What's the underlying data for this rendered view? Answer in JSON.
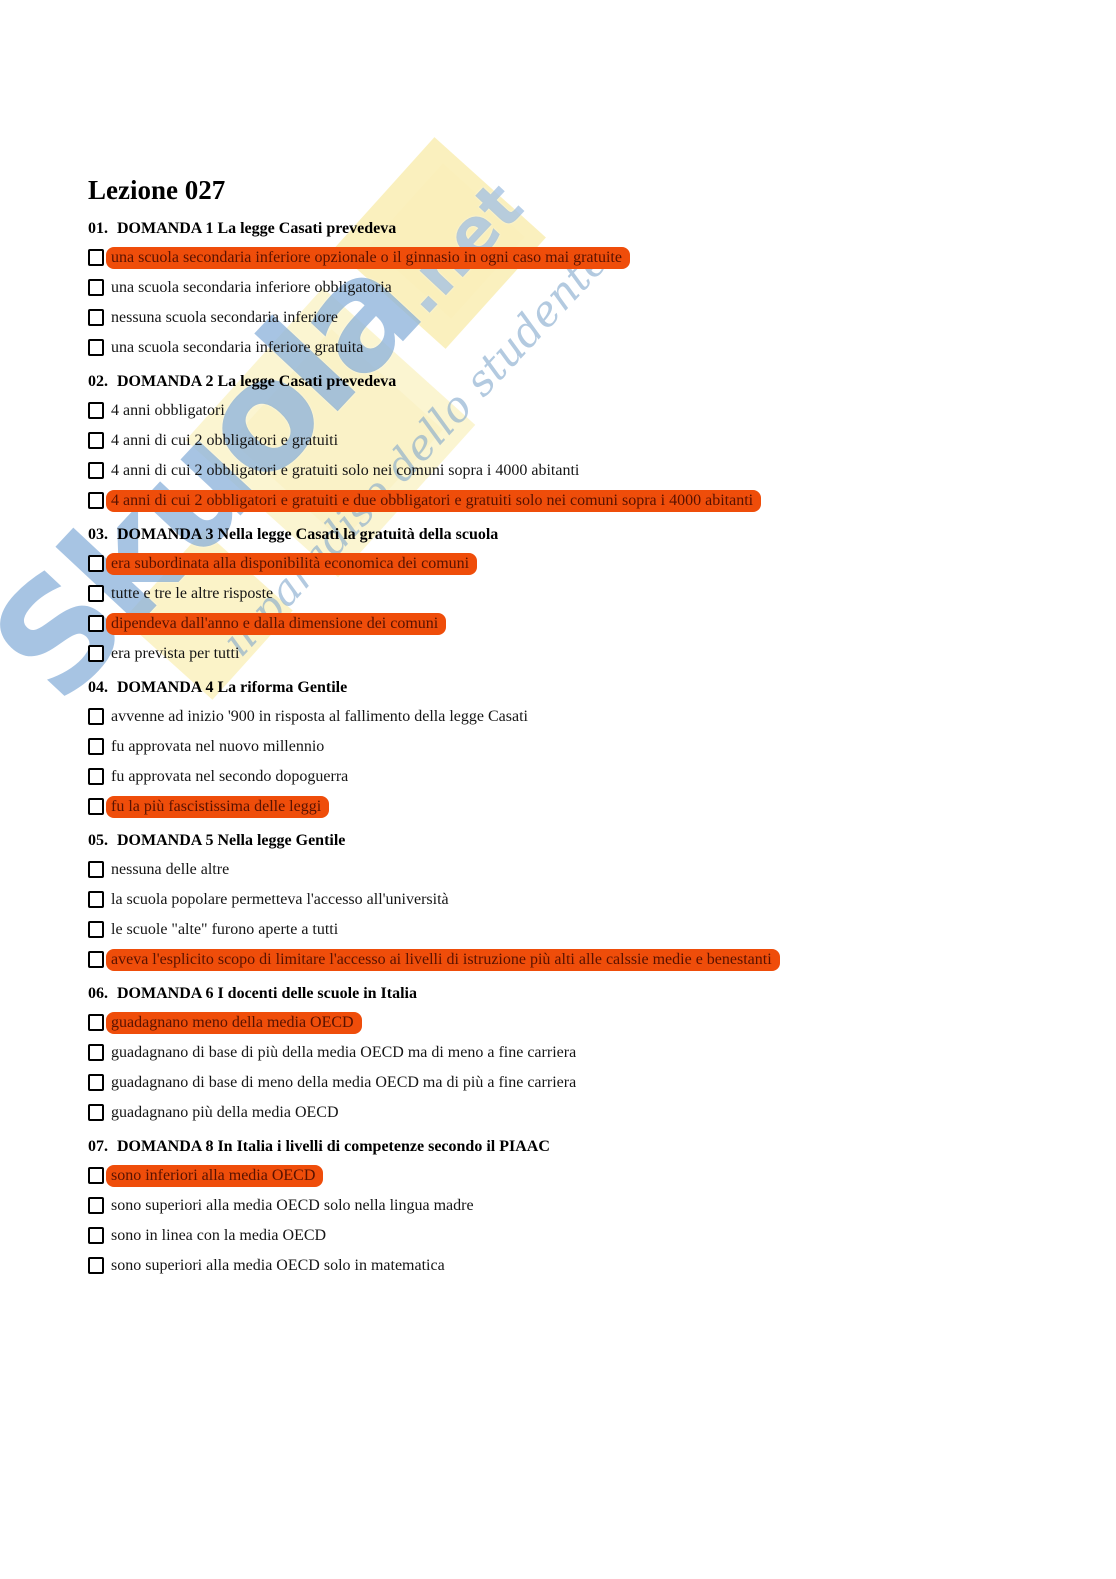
{
  "page": {
    "title": "Lezione 027"
  },
  "watermark": {
    "brand": "Skuola",
    "domain": ".net",
    "slogan": "il paradiso dello studente"
  },
  "colors": {
    "highlight_background": "#EF4D0A",
    "highlight_text": "#581200",
    "watermark_blue": "#4884C4",
    "watermark_yellow": "#F3DC64"
  },
  "questions": [
    {
      "number": "01.",
      "title": "DOMANDA 1 La legge Casati prevedeva",
      "options": [
        {
          "text": "una scuola secondaria inferiore opzionale o il ginnasio in ogni caso mai gratuite",
          "highlighted": true
        },
        {
          "text": "una scuola secondaria inferiore obbligatoria",
          "highlighted": false
        },
        {
          "text": "nessuna scuola secondaria inferiore",
          "highlighted": false
        },
        {
          "text": "una scuola secondaria inferiore gratuita",
          "highlighted": false
        }
      ]
    },
    {
      "number": "02.",
      "title": "DOMANDA 2 La legge Casati prevedeva",
      "options": [
        {
          "text": "4 anni obbligatori",
          "highlighted": false
        },
        {
          "text": "4 anni di cui 2 obbligatori e gratuiti",
          "highlighted": false
        },
        {
          "text": "4 anni di cui 2 obbligatori e gratuiti solo nei comuni sopra i 4000 abitanti",
          "highlighted": false
        },
        {
          "text": "4 anni di cui 2 obbligatori e gratuiti e due obbligatori e gratuiti solo nei comuni sopra i 4000 abitanti",
          "highlighted": true
        }
      ]
    },
    {
      "number": "03.",
      "title": "DOMANDA 3 Nella legge Casati la gratuità della scuola",
      "options": [
        {
          "text": "era subordinata alla disponibilità economica dei comuni",
          "highlighted": true
        },
        {
          "text": "tutte e tre le altre risposte",
          "highlighted": false
        },
        {
          "text": "dipendeva dall'anno e dalla dimensione dei comuni",
          "highlighted": true
        },
        {
          "text": "era prevista per tutti",
          "highlighted": false
        }
      ]
    },
    {
      "number": "04.",
      "title": "DOMANDA 4 La riforma Gentile",
      "options": [
        {
          "text": "avvenne ad inizio '900 in risposta al fallimento della legge Casati",
          "highlighted": false
        },
        {
          "text": "fu approvata nel nuovo millennio",
          "highlighted": false
        },
        {
          "text": "fu approvata nel secondo dopoguerra",
          "highlighted": false
        },
        {
          "text": "fu la più fascistissima delle leggi",
          "highlighted": true
        }
      ]
    },
    {
      "number": "05.",
      "title": "DOMANDA 5 Nella legge Gentile",
      "options": [
        {
          "text": "nessuna delle altre",
          "highlighted": false
        },
        {
          "text": "la scuola popolare permetteva l'accesso all'università",
          "highlighted": false
        },
        {
          "text": "le scuole \"alte\" furono aperte a tutti",
          "highlighted": false
        },
        {
          "text": "aveva l'esplicito scopo di limitare l'accesso ai livelli di istruzione più alti alle calssie medie e benestanti",
          "highlighted": true
        }
      ]
    },
    {
      "number": "06.",
      "title": "DOMANDA 6 I docenti delle scuole in Italia",
      "options": [
        {
          "text": "guadagnano meno della media OECD",
          "highlighted": true
        },
        {
          "text": "guadagnano di base di più della media OECD ma di meno a fine carriera",
          "highlighted": false
        },
        {
          "text": "guadagnano di base di meno della media OECD ma di più a fine carriera",
          "highlighted": false
        },
        {
          "text": "guadagnano più della media OECD",
          "highlighted": false
        }
      ]
    },
    {
      "number": "07.",
      "title": "DOMANDA 8 In Italia i livelli di competenze secondo il PIAAC",
      "options": [
        {
          "text": "sono inferiori alla media OECD",
          "highlighted": true
        },
        {
          "text": "sono superiori alla media OECD solo nella lingua madre",
          "highlighted": false
        },
        {
          "text": "sono in linea con la media OECD",
          "highlighted": false
        },
        {
          "text": "sono superiori alla media OECD solo in matematica",
          "highlighted": false
        }
      ]
    }
  ]
}
